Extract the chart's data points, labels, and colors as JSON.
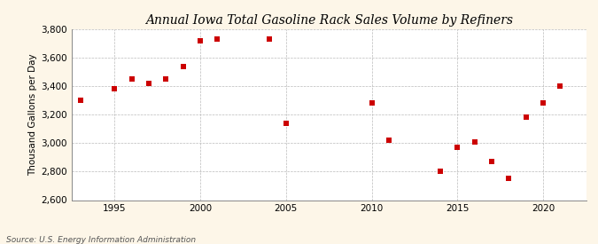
{
  "title": "Annual Iowa Total Gasoline Rack Sales Volume by Refiners",
  "ylabel": "Thousand Gallons per Day",
  "source": "Source: U.S. Energy Information Administration",
  "years": [
    1993,
    1995,
    1996,
    1997,
    1998,
    1999,
    2000,
    2001,
    2004,
    2005,
    2010,
    2011,
    2014,
    2015,
    2016,
    2017,
    2018,
    2019,
    2020,
    2021
  ],
  "values": [
    3300,
    3380,
    3450,
    3420,
    3450,
    3540,
    3720,
    3730,
    3730,
    3140,
    3280,
    3020,
    2800,
    2970,
    3010,
    2870,
    2755,
    3180,
    3280,
    3400
  ],
  "ylim": [
    2600,
    3800
  ],
  "yticks": [
    2600,
    2800,
    3000,
    3200,
    3400,
    3600,
    3800
  ],
  "xlim": [
    1992.5,
    2022.5
  ],
  "xticks": [
    1995,
    2000,
    2005,
    2010,
    2015,
    2020
  ],
  "marker_color": "#cc0000",
  "marker_size": 5,
  "bg_color": "#fdf6e8",
  "plot_bg_color": "#ffffff",
  "grid_color": "#bbbbbb",
  "title_fontsize": 10,
  "label_fontsize": 7.5,
  "tick_fontsize": 7.5,
  "source_fontsize": 6.5
}
